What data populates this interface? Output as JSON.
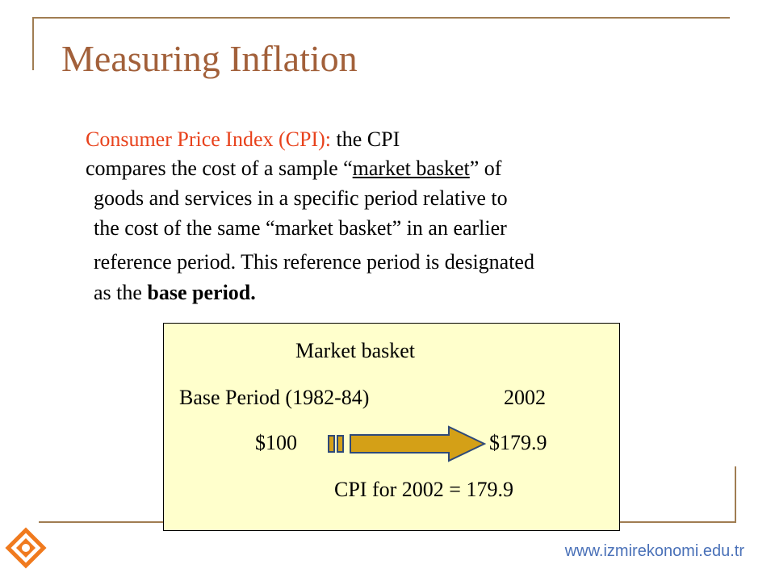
{
  "slide": {
    "title": "Measuring Inflation",
    "definition": {
      "term": "Consumer Price Index (CPI):",
      "line1_rest": " the CPI",
      "line2_a": "compares the cost of a sample “",
      "line2_u": "market basket",
      "line2_b": "” of",
      "line3": "goods and services in a specific period relative to",
      "line4": "the cost of the same “market basket” in an earlier",
      "line5": "reference period.  This reference period is designated",
      "line6_a": "as the ",
      "line6_b": "base period."
    },
    "box": {
      "heading": "Market basket",
      "base_label": "Base Period (1982-84)",
      "year": "2002",
      "base_value": "$100",
      "year_value": "$179.9",
      "cpi_result": "CPI for 2002 = 179.9"
    },
    "footer": {
      "website": "www.izmirekonomi.edu.tr"
    },
    "colors": {
      "title": "#a2603a",
      "term": "#e8421c",
      "frame": "#a07d52",
      "panel_bg": "#ffffcc",
      "arrow_fill": "#d4a017",
      "arrow_border": "#2e4a7a",
      "logo": "#f07a1e",
      "website": "#4a71b8"
    }
  }
}
